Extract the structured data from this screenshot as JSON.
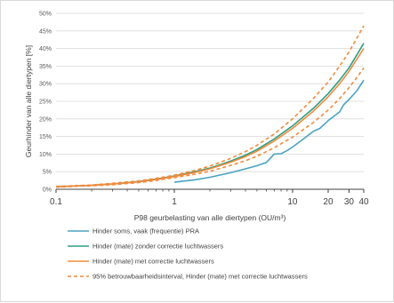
{
  "chart_data": {
    "type": "line",
    "xscale": "log",
    "xlim": [
      0.1,
      40
    ],
    "ylim": [
      0,
      50
    ],
    "grid": "horizontal",
    "legend_position": "bottom",
    "xlabel": "P98 geurbelasting van alle diertypen (OU/m³)",
    "ylabel": "Geurhinder van alle diertypen [%]",
    "y_ticks": [
      "0%",
      "5%",
      "10%",
      "15%",
      "20%",
      "25%",
      "30%",
      "35%",
      "40%",
      "45%",
      "50%"
    ],
    "y_tick_values": [
      0,
      5,
      10,
      15,
      20,
      25,
      30,
      35,
      40,
      45,
      50
    ],
    "x_ticks": [
      "0.1",
      "1",
      "10",
      "20",
      "30",
      "40"
    ],
    "x_tick_values": [
      0.1,
      1,
      10,
      20,
      30,
      40
    ],
    "series": [
      {
        "name": "Hinder soms, vaak (frequentie) PRA",
        "color": "#4aa3c0",
        "dash": "solid",
        "x": [
          1,
          1.5,
          2,
          3,
          4,
          5,
          6,
          7,
          8,
          9,
          10,
          12,
          15,
          17,
          20,
          25,
          27,
          30,
          35,
          40
        ],
        "y": [
          2.0,
          2.7,
          3.4,
          4.7,
          5.8,
          6.7,
          7.6,
          10.0,
          10.1,
          11.0,
          12.0,
          14.0,
          16.5,
          17.3,
          19.5,
          22.0,
          24.0,
          25.5,
          28.0,
          31.0
        ]
      },
      {
        "name": "Hinder (mate) zonder correctie luchtwassers",
        "color": "#2e9e82",
        "dash": "solid",
        "x": [
          0.1,
          0.2,
          0.3,
          0.5,
          0.7,
          1,
          1.5,
          2,
          3,
          4,
          5,
          7,
          10,
          15,
          20,
          25,
          30,
          35,
          40
        ],
        "y": [
          0.7,
          1.1,
          1.5,
          2.2,
          2.9,
          3.8,
          5.0,
          6.0,
          8.0,
          9.7,
          11.3,
          14.3,
          18.0,
          23.0,
          27.2,
          31.0,
          34.5,
          38.2,
          41.5
        ]
      },
      {
        "name": "Hinder (mate) met correctie luchtwassers",
        "color": "#f28a3c",
        "dash": "solid",
        "x": [
          0.1,
          0.2,
          0.3,
          0.5,
          0.7,
          1,
          1.5,
          2,
          3,
          4,
          5,
          7,
          10,
          15,
          20,
          25,
          30,
          35,
          40
        ],
        "y": [
          0.7,
          1.1,
          1.5,
          2.1,
          2.8,
          3.6,
          4.8,
          5.8,
          7.7,
          9.3,
          10.8,
          13.7,
          17.3,
          22.2,
          26.3,
          30.0,
          33.5,
          37.0,
          40.0
        ]
      },
      {
        "name": "95% betrouwbaarheidsinterval, Hinder (mate) met correctie luchtwassers",
        "color": "#f28a3c",
        "dash": "dashed",
        "x": [
          0.1,
          0.2,
          0.3,
          0.5,
          0.7,
          1,
          1.5,
          2,
          3,
          4,
          5,
          7,
          10,
          15,
          20,
          25,
          30,
          35,
          40
        ],
        "y": [
          0.8,
          1.2,
          1.7,
          2.4,
          3.1,
          4.0,
          5.4,
          6.6,
          8.8,
          10.7,
          12.5,
          15.7,
          20.0,
          25.8,
          30.5,
          35.0,
          39.0,
          43.0,
          46.5
        ]
      },
      {
        "name": "",
        "color": "#f28a3c",
        "dash": "dashed",
        "x": [
          0.1,
          0.2,
          0.3,
          0.5,
          0.7,
          1,
          1.5,
          2,
          3,
          4,
          5,
          7,
          10,
          15,
          20,
          25,
          30,
          35,
          40
        ],
        "y": [
          0.6,
          1.0,
          1.3,
          1.9,
          2.5,
          3.3,
          4.3,
          5.1,
          6.8,
          8.1,
          9.4,
          11.8,
          14.8,
          19.0,
          22.5,
          25.8,
          28.9,
          31.8,
          34.5
        ]
      }
    ]
  }
}
